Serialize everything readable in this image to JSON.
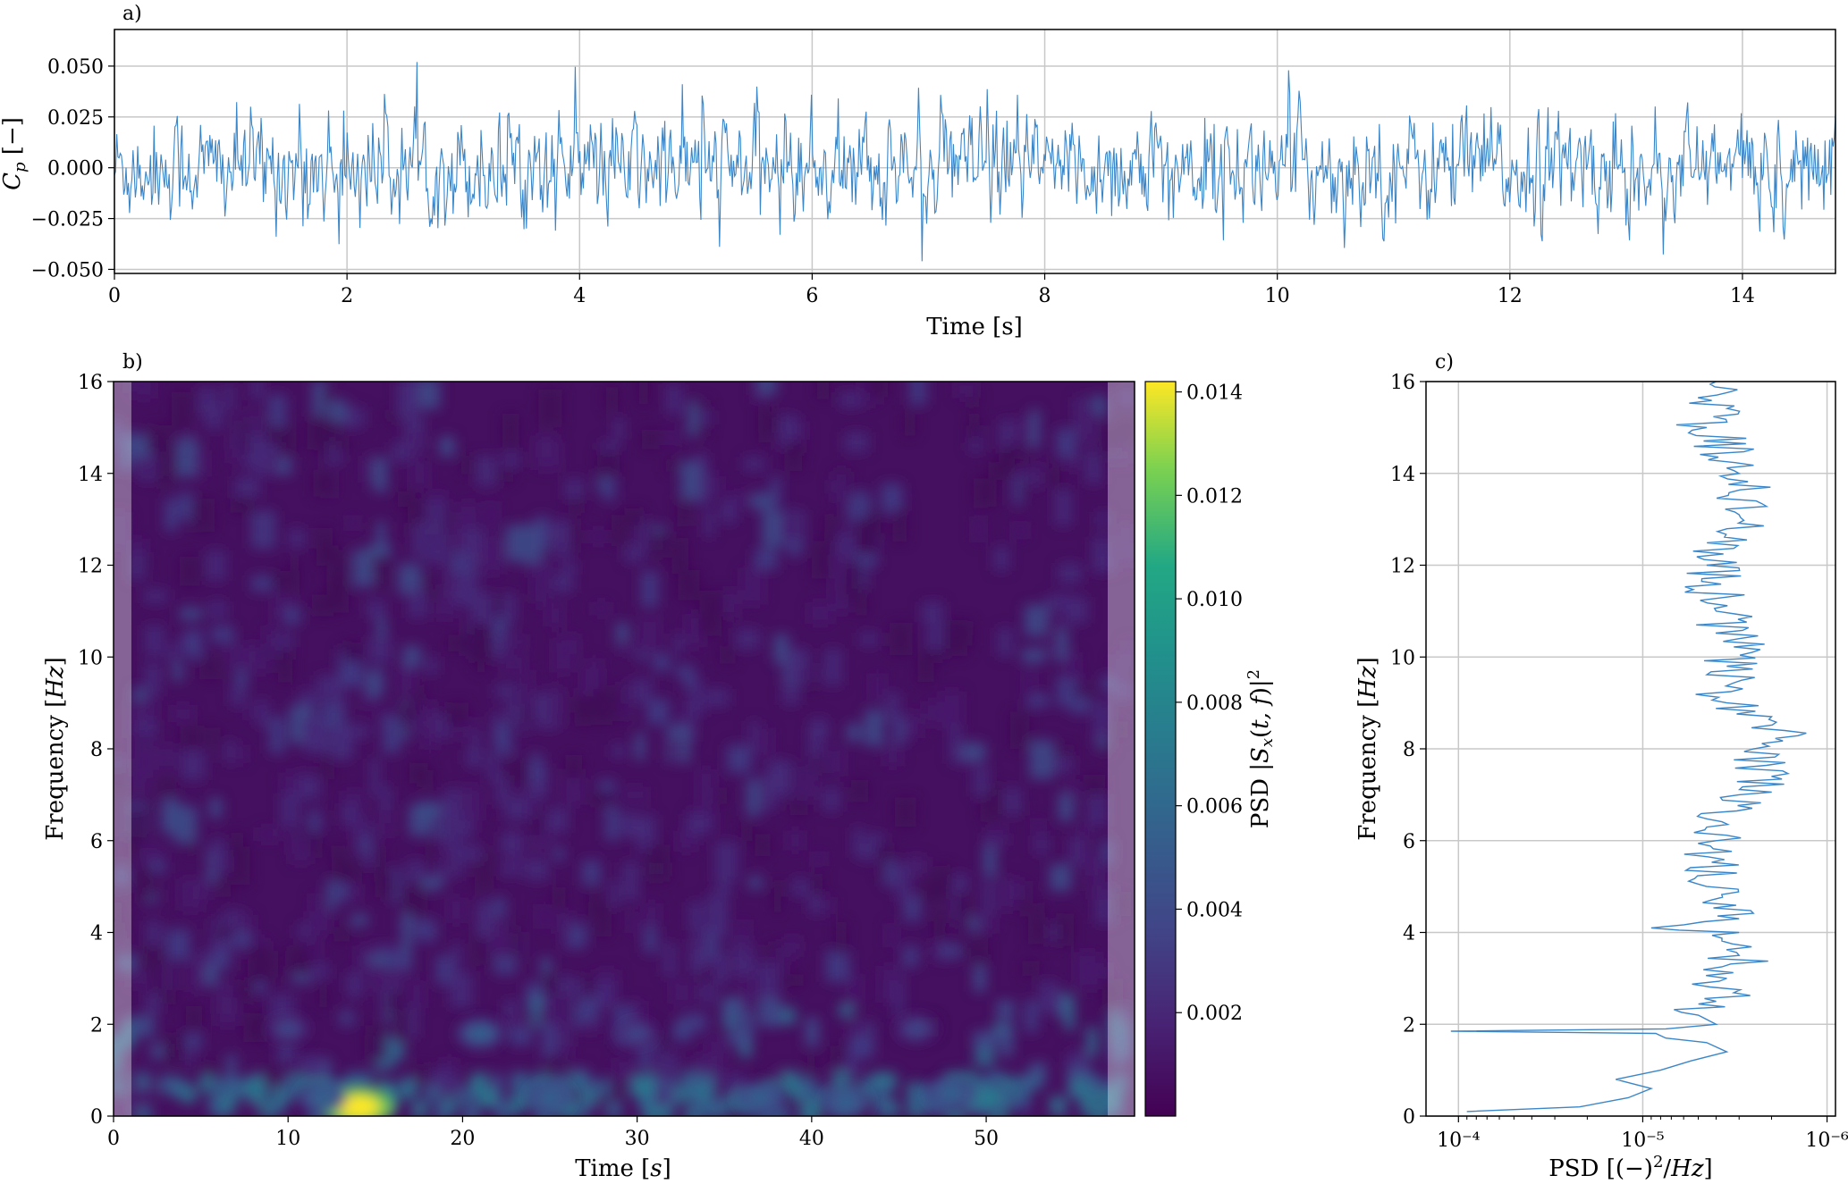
{
  "figure": {
    "panel_labels": [
      "a)",
      "b)",
      "c)"
    ]
  },
  "chart_data": [
    {
      "type": "line",
      "panel": "a)",
      "xlabel": "Time [s]",
      "ylabel": "C_p [−]",
      "xlim": [
        0,
        14.8
      ],
      "ylim": [
        -0.052,
        0.068
      ],
      "xticks": [
        "0",
        "2",
        "4",
        "6",
        "8",
        "10",
        "12",
        "14"
      ],
      "yticks": [
        "−0.050",
        "−0.025",
        "0.000",
        "0.025",
        "0.050"
      ],
      "ytick_values": [
        -0.05,
        -0.025,
        0.0,
        0.025,
        0.05
      ],
      "grid": true,
      "series_color": "#3a86c8",
      "series": [
        {
          "x_start": 0,
          "x_end": 14.8,
          "n": 1480,
          "mean": 0.0,
          "std": 0.013,
          "min": -0.046,
          "max": 0.064
        }
      ],
      "annotations": []
    },
    {
      "type": "heatmap",
      "panel": "b)",
      "xlabel": "Time [s]",
      "ylabel": "Frequency [Hz]",
      "xlim": [
        0,
        58.5
      ],
      "ylim": [
        0,
        16
      ],
      "xticks": [
        "0",
        "10",
        "20",
        "30",
        "40",
        "50"
      ],
      "yticks": [
        "0",
        "2",
        "4",
        "6",
        "8",
        "10",
        "12",
        "14",
        "16"
      ],
      "colormap": "viridis",
      "colorbar": {
        "label": "PSD |S_x(t,f)|²",
        "range": [
          0,
          0.0142
        ],
        "ticks": [
          "0.002",
          "0.004",
          "0.006",
          "0.008",
          "0.010",
          "0.012",
          "0.014"
        ],
        "tick_values": [
          0.002,
          0.004,
          0.006,
          0.008,
          0.01,
          0.012,
          0.014
        ]
      },
      "cone_of_influence_shaded": true,
      "hotspots": [
        {
          "t": 14,
          "f": 0.2,
          "value": 0.0142
        },
        {
          "t": 12,
          "f": 0.4,
          "value": 0.006
        },
        {
          "t": 50,
          "f": 0.4,
          "value": 0.0075
        },
        {
          "t": 48,
          "f": 0.5,
          "value": 0.006
        },
        {
          "t": 37,
          "f": 0.4,
          "value": 0.005
        },
        {
          "t": 42,
          "f": 0.3,
          "value": 0.005
        },
        {
          "t": 25,
          "f": 0.4,
          "value": 0.0045
        },
        {
          "t": 21,
          "f": 1.8,
          "value": 0.005
        },
        {
          "t": 10,
          "f": 1.9,
          "value": 0.004
        },
        {
          "t": 46,
          "f": 1.9,
          "value": 0.004
        },
        {
          "t": 30,
          "f": 1.8,
          "value": 0.0035
        }
      ]
    },
    {
      "type": "line",
      "panel": "c)",
      "xlabel": "PSD [(−)²/Hz]",
      "ylabel": "Frequency [Hz]",
      "xscale": "log",
      "x_inverted": true,
      "xlim": [
        0.00015,
        9e-07
      ],
      "ylim": [
        0,
        16
      ],
      "xticks": [
        "10⁻⁴",
        "10⁻⁵",
        "10⁻⁶"
      ],
      "xtick_values": [
        0.0001,
        1e-05,
        1e-06
      ],
      "yticks": [
        "0",
        "2",
        "4",
        "6",
        "8",
        "10",
        "12",
        "14",
        "16"
      ],
      "grid": true,
      "series_color": "#3a86c8",
      "series": [
        {
          "f": [
            0.1,
            0.2,
            0.4,
            0.6,
            0.8,
            1.0,
            1.2,
            1.4,
            1.6,
            1.7,
            1.8,
            1.85,
            1.9,
            2.0,
            2.2,
            2.5,
            3.0,
            3.5,
            4.0,
            4.1,
            4.3,
            5.0,
            6.0,
            7.0,
            7.4,
            8.0,
            8.4,
            8.7,
            9.0,
            9.8,
            10.4,
            11.0,
            12.0,
            13.1,
            14.0,
            15.0,
            16.0
          ],
          "psd": [
            9e-05,
            2.2e-05,
            1.2e-05,
            9e-06,
            1.4e-05,
            8e-06,
            5.5e-06,
            3.5e-06,
            4.5e-06,
            7.5e-06,
            8.5e-06,
            0.00011,
            7.5e-06,
            4e-06,
            5e-06,
            4e-06,
            3.5e-06,
            3e-06,
            3e-06,
            9e-06,
            3e-06,
            4.5e-06,
            4e-06,
            3e-06,
            2e-06,
            2.5e-06,
            1.7e-06,
            2e-06,
            3.5e-06,
            3.5e-06,
            3e-06,
            4e-06,
            4.5e-06,
            3e-06,
            3e-06,
            4.5e-06,
            4e-06
          ]
        }
      ]
    }
  ]
}
